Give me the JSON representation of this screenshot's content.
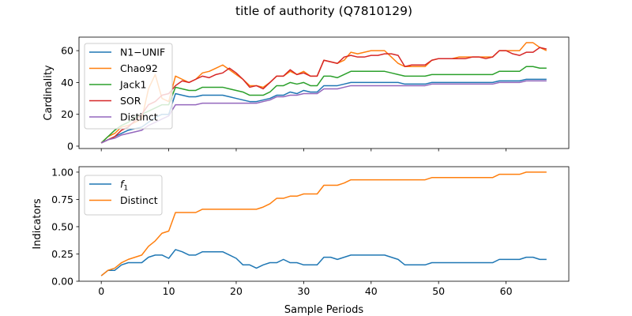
{
  "figure": {
    "title": "title of authority (Q7810129)"
  },
  "chart_data": [
    {
      "type": "line",
      "ylabel": "Cardinality",
      "xlabel": "",
      "xlim": [
        -3.3,
        69.3
      ],
      "ylim": [
        -1.5,
        68.5
      ],
      "xticks": [
        0,
        10,
        20,
        30,
        40,
        50,
        60
      ],
      "yticks": [
        0,
        20,
        40,
        60
      ],
      "ytick_labels": [
        "0",
        "20",
        "40",
        "60"
      ],
      "show_xtick_labels": false,
      "grid": false,
      "legend": "upper left",
      "series": [
        {
          "name": "N1−UNIF",
          "color": "#1f77b4",
          "x": [
            0,
            1,
            2,
            3,
            4,
            5,
            6,
            7,
            8,
            9,
            10,
            11,
            12,
            13,
            14,
            15,
            16,
            17,
            18,
            19,
            20,
            21,
            22,
            23,
            24,
            25,
            26,
            27,
            28,
            29,
            30,
            31,
            32,
            33,
            34,
            35,
            36,
            37,
            38,
            39,
            40,
            41,
            42,
            43,
            44,
            45,
            46,
            47,
            48,
            49,
            50,
            51,
            52,
            53,
            54,
            55,
            56,
            57,
            58,
            59,
            60,
            61,
            62,
            63,
            64,
            65,
            66
          ],
          "y": [
            2,
            4,
            6,
            8,
            10,
            11,
            12,
            15,
            18,
            20,
            20,
            33,
            32,
            31,
            31,
            32,
            32,
            32,
            32,
            31,
            30,
            29,
            28,
            28,
            29,
            30,
            32,
            32,
            34,
            33,
            35,
            34,
            34,
            38,
            38,
            38,
            39,
            40,
            40,
            40,
            40,
            40,
            40,
            40,
            40,
            39,
            39,
            39,
            39,
            40,
            40,
            40,
            40,
            40,
            40,
            40,
            40,
            40,
            40,
            41,
            41,
            41,
            41,
            42,
            42,
            42,
            42
          ]
        },
        {
          "name": "Chao92",
          "color": "#ff7f0e",
          "x": [
            0,
            1,
            2,
            3,
            4,
            5,
            6,
            7,
            8,
            9,
            10,
            11,
            12,
            13,
            14,
            15,
            16,
            17,
            18,
            19,
            20,
            21,
            22,
            23,
            24,
            25,
            26,
            27,
            28,
            29,
            30,
            31,
            32,
            33,
            34,
            35,
            36,
            37,
            38,
            39,
            40,
            41,
            42,
            43,
            44,
            45,
            46,
            47,
            48,
            49,
            50,
            51,
            52,
            53,
            54,
            55,
            56,
            57,
            58,
            59,
            60,
            61,
            62,
            63,
            64,
            65,
            66
          ],
          "y": [
            2,
            6,
            8,
            12,
            13,
            15,
            17,
            36,
            45,
            30,
            28,
            44,
            42,
            40,
            42,
            46,
            47,
            49,
            51,
            48,
            45,
            42,
            38,
            38,
            37,
            40,
            44,
            44,
            47,
            45,
            47,
            44,
            44,
            54,
            53,
            52,
            54,
            59,
            58,
            59,
            60,
            60,
            60,
            56,
            52,
            50,
            50,
            50,
            50,
            54,
            55,
            55,
            55,
            56,
            56,
            56,
            56,
            56,
            56,
            60,
            60,
            60,
            60,
            65,
            65,
            62,
            60
          ]
        },
        {
          "name": "Jack1",
          "color": "#2ca02c",
          "x": [
            0,
            1,
            2,
            3,
            4,
            5,
            6,
            7,
            8,
            9,
            10,
            11,
            12,
            13,
            14,
            15,
            16,
            17,
            18,
            19,
            20,
            21,
            22,
            23,
            24,
            25,
            26,
            27,
            28,
            29,
            30,
            31,
            32,
            33,
            34,
            35,
            36,
            37,
            38,
            39,
            40,
            41,
            42,
            43,
            44,
            45,
            46,
            47,
            48,
            49,
            50,
            51,
            52,
            53,
            54,
            55,
            56,
            57,
            58,
            59,
            60,
            61,
            62,
            63,
            64,
            65,
            66
          ],
          "y": [
            2,
            6,
            10,
            13,
            15,
            18,
            20,
            22,
            24,
            26,
            26,
            37,
            36,
            35,
            35,
            37,
            37,
            37,
            37,
            36,
            35,
            34,
            32,
            32,
            32,
            34,
            38,
            38,
            40,
            39,
            40,
            38,
            38,
            44,
            44,
            43,
            45,
            47,
            47,
            47,
            47,
            47,
            47,
            46,
            45,
            44,
            44,
            44,
            44,
            45,
            45,
            45,
            45,
            45,
            45,
            45,
            45,
            45,
            45,
            47,
            47,
            47,
            47,
            50,
            50,
            49,
            49
          ]
        },
        {
          "name": "SOR",
          "color": "#d62728",
          "x": [
            0,
            1,
            2,
            3,
            4,
            5,
            6,
            7,
            8,
            9,
            10,
            11,
            12,
            13,
            14,
            15,
            16,
            17,
            18,
            19,
            20,
            21,
            22,
            23,
            24,
            25,
            26,
            27,
            28,
            29,
            30,
            31,
            32,
            33,
            34,
            35,
            36,
            37,
            38,
            39,
            40,
            41,
            42,
            43,
            44,
            45,
            46,
            47,
            48,
            49,
            50,
            51,
            52,
            53,
            54,
            55,
            56,
            57,
            58,
            59,
            60,
            61,
            62,
            63,
            64,
            65,
            66
          ],
          "y": [
            2,
            4,
            6,
            10,
            12,
            16,
            20,
            26,
            28,
            32,
            33,
            38,
            41,
            40,
            42,
            44,
            43,
            45,
            46,
            49,
            46,
            42,
            37,
            38,
            36,
            40,
            44,
            44,
            48,
            45,
            46,
            44,
            44,
            54,
            53,
            52,
            56,
            57,
            56,
            56,
            57,
            57,
            58,
            58,
            57,
            50,
            51,
            51,
            51,
            54,
            55,
            55,
            55,
            55,
            55,
            56,
            56,
            55,
            56,
            60,
            60,
            58,
            57,
            59,
            59,
            62,
            61
          ]
        },
        {
          "name": "Distinct",
          "color": "#9467bd",
          "x": [
            0,
            1,
            2,
            3,
            4,
            5,
            6,
            7,
            8,
            9,
            10,
            11,
            12,
            13,
            14,
            15,
            16,
            17,
            18,
            19,
            20,
            21,
            22,
            23,
            24,
            25,
            26,
            27,
            28,
            29,
            30,
            31,
            32,
            33,
            34,
            35,
            36,
            37,
            38,
            39,
            40,
            41,
            42,
            43,
            44,
            45,
            46,
            47,
            48,
            49,
            50,
            51,
            52,
            53,
            54,
            55,
            56,
            57,
            58,
            59,
            60,
            61,
            62,
            63,
            64,
            65,
            66
          ],
          "y": [
            2,
            4,
            5,
            7,
            8,
            9,
            10,
            13,
            15,
            17,
            19,
            26,
            26,
            26,
            26,
            27,
            27,
            27,
            27,
            27,
            27,
            27,
            27,
            27,
            28,
            29,
            31,
            31,
            32,
            32,
            33,
            33,
            33,
            36,
            36,
            36,
            37,
            38,
            38,
            38,
            38,
            38,
            38,
            38,
            38,
            38,
            38,
            38,
            38,
            39,
            39,
            39,
            39,
            39,
            39,
            39,
            39,
            39,
            39,
            40,
            40,
            40,
            40,
            41,
            41,
            41,
            41
          ]
        }
      ]
    },
    {
      "type": "line",
      "ylabel": "Indicators",
      "xlabel": "Sample Periods",
      "xlim": [
        -3.3,
        69.3
      ],
      "ylim": [
        0.0,
        1.05
      ],
      "xticks": [
        0,
        10,
        20,
        30,
        40,
        50,
        60
      ],
      "xtick_labels": [
        "0",
        "10",
        "20",
        "30",
        "40",
        "50",
        "60"
      ],
      "yticks": [
        0.0,
        0.25,
        0.5,
        0.75,
        1.0
      ],
      "ytick_labels": [
        "0.00",
        "0.25",
        "0.50",
        "0.75",
        "1.00"
      ],
      "show_xtick_labels": true,
      "grid": false,
      "legend": "upper left",
      "series": [
        {
          "name": "f",
          "name_subscript": "1",
          "color": "#1f77b4",
          "x": [
            0,
            1,
            2,
            3,
            4,
            5,
            6,
            7,
            8,
            9,
            10,
            11,
            12,
            13,
            14,
            15,
            16,
            17,
            18,
            19,
            20,
            21,
            22,
            23,
            24,
            25,
            26,
            27,
            28,
            29,
            30,
            31,
            32,
            33,
            34,
            35,
            36,
            37,
            38,
            39,
            40,
            41,
            42,
            43,
            44,
            45,
            46,
            47,
            48,
            49,
            50,
            51,
            52,
            53,
            54,
            55,
            56,
            57,
            58,
            59,
            60,
            61,
            62,
            63,
            64,
            65,
            66
          ],
          "y": [
            0.05,
            0.1,
            0.1,
            0.15,
            0.17,
            0.17,
            0.17,
            0.22,
            0.24,
            0.24,
            0.21,
            0.29,
            0.27,
            0.24,
            0.24,
            0.27,
            0.27,
            0.27,
            0.27,
            0.24,
            0.21,
            0.15,
            0.15,
            0.12,
            0.15,
            0.17,
            0.17,
            0.2,
            0.17,
            0.17,
            0.15,
            0.15,
            0.15,
            0.22,
            0.22,
            0.2,
            0.22,
            0.24,
            0.24,
            0.24,
            0.24,
            0.24,
            0.24,
            0.22,
            0.2,
            0.15,
            0.15,
            0.15,
            0.15,
            0.17,
            0.17,
            0.17,
            0.17,
            0.17,
            0.17,
            0.17,
            0.17,
            0.17,
            0.17,
            0.2,
            0.2,
            0.2,
            0.2,
            0.22,
            0.22,
            0.2,
            0.2
          ]
        },
        {
          "name": "Distinct",
          "color": "#ff7f0e",
          "x": [
            0,
            1,
            2,
            3,
            4,
            5,
            6,
            7,
            8,
            9,
            10,
            11,
            12,
            13,
            14,
            15,
            16,
            17,
            18,
            19,
            20,
            21,
            22,
            23,
            24,
            25,
            26,
            27,
            28,
            29,
            30,
            31,
            32,
            33,
            34,
            35,
            36,
            37,
            38,
            39,
            40,
            41,
            42,
            43,
            44,
            45,
            46,
            47,
            48,
            49,
            50,
            51,
            52,
            53,
            54,
            55,
            56,
            57,
            58,
            59,
            60,
            61,
            62,
            63,
            64,
            65,
            66
          ],
          "y": [
            0.05,
            0.1,
            0.12,
            0.17,
            0.2,
            0.22,
            0.24,
            0.32,
            0.37,
            0.44,
            0.46,
            0.63,
            0.63,
            0.63,
            0.63,
            0.66,
            0.66,
            0.66,
            0.66,
            0.66,
            0.66,
            0.66,
            0.66,
            0.66,
            0.68,
            0.71,
            0.76,
            0.76,
            0.78,
            0.78,
            0.8,
            0.8,
            0.8,
            0.88,
            0.88,
            0.88,
            0.9,
            0.93,
            0.93,
            0.93,
            0.93,
            0.93,
            0.93,
            0.93,
            0.93,
            0.93,
            0.93,
            0.93,
            0.93,
            0.95,
            0.95,
            0.95,
            0.95,
            0.95,
            0.95,
            0.95,
            0.95,
            0.95,
            0.95,
            0.98,
            0.98,
            0.98,
            0.98,
            1.0,
            1.0,
            1.0,
            1.0
          ]
        }
      ]
    }
  ]
}
